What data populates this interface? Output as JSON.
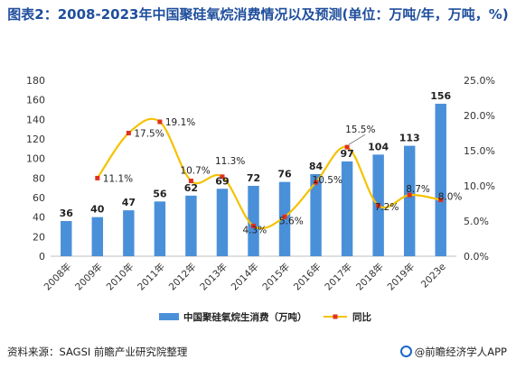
{
  "chart_data": {
    "type": "bar",
    "title": "图表2：2008-2023年中国聚硅氧烷消费情况以及预测(单位：万吨/年，万吨，%)",
    "categories": [
      "2008年",
      "2009年",
      "2010年",
      "2011年",
      "2012年",
      "2013年",
      "2014年",
      "2015年",
      "2016年",
      "2017年",
      "2018年",
      "2019年",
      "2023e"
    ],
    "series": [
      {
        "name": "中国聚硅氧烷生消费（万吨）",
        "kind": "bar",
        "axis": "left",
        "color": "#4a90d9",
        "values": [
          36,
          40,
          47,
          56,
          62,
          69,
          72,
          76,
          84,
          97,
          104,
          113,
          156
        ],
        "labels": [
          "36",
          "40",
          "47",
          "56",
          "62",
          "69",
          "72",
          "76",
          "84",
          "97",
          "104",
          "113",
          "156"
        ]
      },
      {
        "name": "同比",
        "kind": "line",
        "axis": "right",
        "color": "#f5c200",
        "marker_color": "#e0301e",
        "values": [
          null,
          11.1,
          17.5,
          19.1,
          10.7,
          11.3,
          4.3,
          5.6,
          10.5,
          15.5,
          7.2,
          8.7,
          8.0
        ],
        "labels": [
          "",
          "11.1%",
          "17.5%",
          "19.1%",
          "10.7%",
          "11.3%",
          "4.3%",
          "5.6%",
          "10.5%",
          "15.5%",
          "7.2%",
          "8.7%",
          "8.0%"
        ]
      }
    ],
    "y_left": {
      "min": 0,
      "max": 180,
      "ticks": [
        "0",
        "20",
        "40",
        "60",
        "80",
        "100",
        "120",
        "140",
        "160",
        "180"
      ]
    },
    "y_right": {
      "min": 0,
      "max": 25,
      "ticks": [
        "0.0%",
        "5.0%",
        "10.0%",
        "15.0%",
        "20.0%",
        "25.0%"
      ]
    },
    "legend_position": "bottom",
    "grid": false
  },
  "footer": {
    "source": "资料来源：SAGSI 前瞻产业研究院整理",
    "brand": "@前瞻经济学人APP"
  }
}
